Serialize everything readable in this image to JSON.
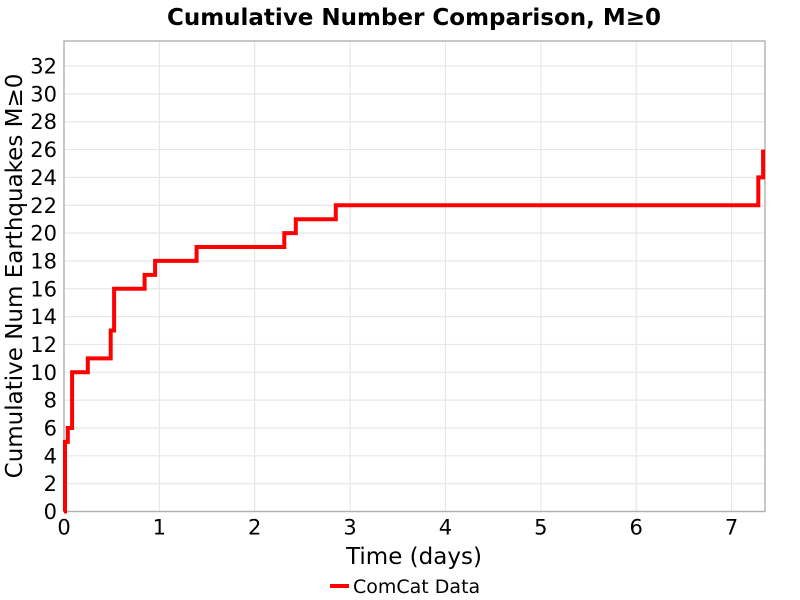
{
  "title": "Cumulative Number Comparison, M≥0",
  "colors": {
    "background": "#ffffff",
    "line": "#ff0000",
    "grid": "#e7e7e7",
    "spine": "#b0b0b0",
    "text": "#000000"
  },
  "chart_data": {
    "type": "line",
    "subtype": "step-post-cumulative",
    "title": "Cumulative Number Comparison, M≥0",
    "xlabel": "Time (days)",
    "ylabel": "Cumulative Num Earthquakes M≥0",
    "xlim": [
      0,
      7.35
    ],
    "ylim": [
      0,
      33.8
    ],
    "xticks": [
      0,
      1,
      2,
      3,
      4,
      5,
      6,
      7
    ],
    "yticks": [
      0,
      2,
      4,
      6,
      8,
      10,
      12,
      14,
      16,
      18,
      20,
      22,
      24,
      26,
      28,
      30,
      32
    ],
    "grid": true,
    "legend_position": "below x-axis label, centered, no frame",
    "legend": [
      {
        "label": "ComCat Data",
        "color": "#ff0000"
      }
    ],
    "series": [
      {
        "name": "ComCat Data",
        "color": "#ff0000",
        "line_width": 4,
        "points_note": "cumulative count steps [time_days, cumulative_count]",
        "points": [
          [
            0.0,
            0
          ],
          [
            0.01,
            5
          ],
          [
            0.04,
            6
          ],
          [
            0.085,
            10
          ],
          [
            0.25,
            11
          ],
          [
            0.49,
            13
          ],
          [
            0.525,
            16
          ],
          [
            0.845,
            17
          ],
          [
            0.955,
            18
          ],
          [
            1.39,
            19
          ],
          [
            2.31,
            20
          ],
          [
            2.43,
            21
          ],
          [
            2.85,
            22
          ],
          [
            7.28,
            24
          ],
          [
            7.33,
            26
          ]
        ]
      }
    ]
  }
}
